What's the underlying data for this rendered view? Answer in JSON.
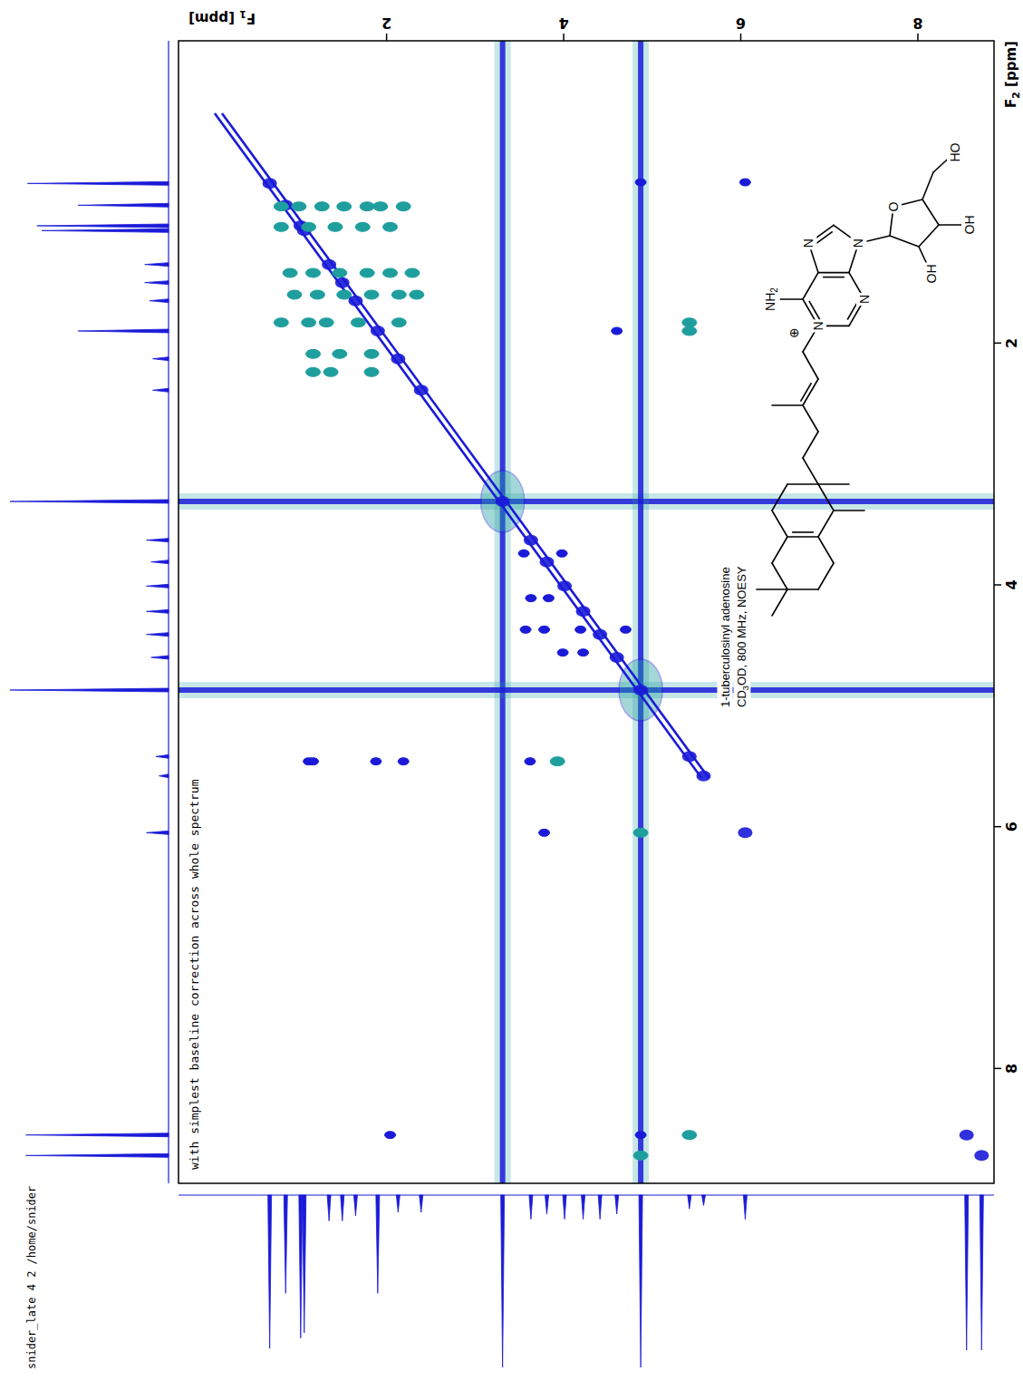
{
  "chart_data": {
    "type": "nmr_2d",
    "header": "snider_late 4 2 /home/snider",
    "title": "with simplest baseline correction across whole spectrum",
    "xlabel": "F1 [ppm]",
    "ylabel": "F2 [ppm]",
    "xlim": [
      -0.35,
      8.86
    ],
    "xticks": [
      2,
      4,
      6,
      8
    ],
    "ylim": [
      -0.5,
      8.95
    ],
    "yticks": [
      2,
      4,
      6,
      8
    ],
    "grid": false,
    "series": [
      {
        "color": "#1a1ad8",
        "x": [
          6.05,
          4.87,
          3.55,
          3.98,
          3.57,
          3.78,
          4.19,
          4.7,
          3.99,
          4.22,
          3.63,
          3.83,
          1.12,
          1.17,
          1.88,
          2.19,
          3.62,
          3.78,
          2.04,
          4.87,
          4.6
        ],
        "y": [
          0.67,
          0.67,
          3.74,
          3.74,
          4.37,
          4.37,
          4.37,
          4.37,
          4.56,
          4.56,
          4.11,
          4.11,
          5.46,
          5.46,
          5.46,
          5.46,
          5.46,
          6.05,
          8.55,
          8.55,
          1.9
        ]
      },
      {
        "color": "#1f9e9e",
        "x": [
          0.81,
          1.01,
          1.27,
          1.52,
          1.78,
          1.93,
          2.19,
          0.81,
          1.12,
          1.42,
          1.73,
          2.04,
          0.91,
          1.17,
          1.47,
          1.78,
          2.04,
          2.29,
          0.96,
          1.22,
          1.52,
          1.83,
          2.14,
          2.34,
          0.81,
          1.12,
          1.32,
          1.68,
          2.14,
          1.17,
          1.47,
          1.83,
          1.17,
          1.37,
          1.83,
          5.42,
          5.42,
          5.42,
          4.87,
          4.87,
          3.93
        ],
        "y": [
          0.87,
          0.87,
          0.87,
          0.87,
          0.87,
          0.87,
          0.87,
          1.04,
          1.04,
          1.04,
          1.04,
          1.04,
          1.42,
          1.42,
          1.42,
          1.42,
          1.42,
          1.42,
          1.6,
          1.6,
          1.6,
          1.6,
          1.6,
          1.6,
          1.83,
          1.83,
          1.83,
          1.83,
          1.83,
          2.09,
          2.09,
          2.09,
          2.24,
          2.24,
          2.24,
          1.83,
          1.9,
          8.55,
          8.72,
          6.05,
          5.46
        ]
      }
    ],
    "diagonal": [
      0.1,
      5.6
    ],
    "solvent": [
      3.31,
      4.87
    ],
    "projection": {
      "ppm": [
        0.68,
        0.86,
        1.03,
        1.07,
        1.35,
        1.5,
        1.65,
        1.9,
        2.13,
        2.39,
        3.31,
        3.63,
        3.81,
        4.01,
        4.22,
        4.41,
        4.6,
        4.87,
        5.42,
        5.58,
        6.05,
        8.55,
        8.72
      ],
      "intensity": [
        89,
        57,
        83,
        80,
        15,
        15,
        12,
        57,
        10,
        10,
        100,
        14,
        11,
        14,
        14,
        14,
        11,
        100,
        8,
        6,
        14,
        90,
        90
      ]
    },
    "structure": {
      "atoms": [
        "NH2",
        "N",
        "N",
        "N",
        "N",
        "O",
        "HO",
        "OH",
        "OH"
      ],
      "charge": "⊕",
      "name": "1-tuberculosinyl adenosine",
      "conditions": "CD3OD, 800 MHz, NOESY"
    }
  }
}
